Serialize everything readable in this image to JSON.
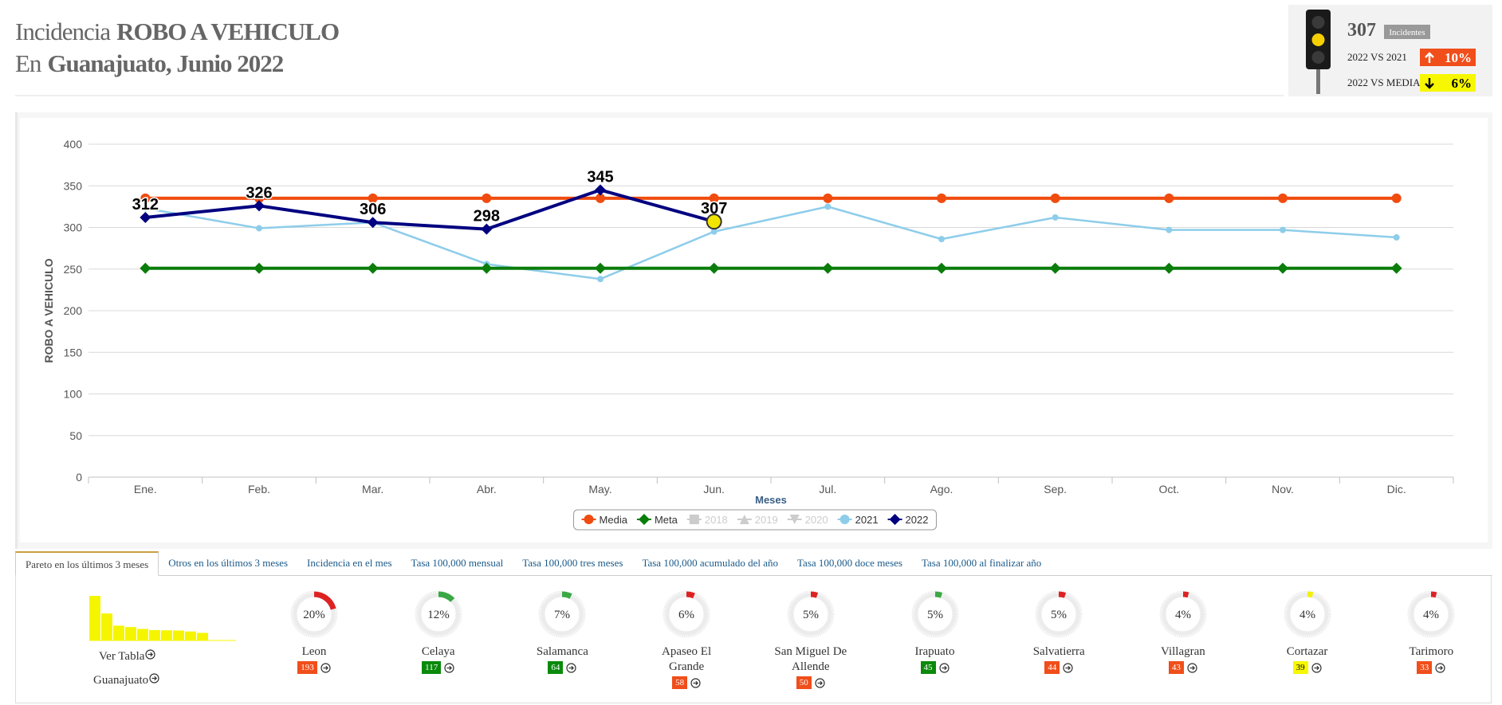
{
  "header": {
    "prefix1": "Incidencia",
    "crime": "ROBO A VEHICULO",
    "prefix2": "En",
    "place": "Guanajuato, Junio 2022"
  },
  "summary": {
    "count": "307",
    "count_label": "Incidentes",
    "compare1": {
      "label": "2022 VS 2021",
      "value": "10%",
      "color": "#f04e1a",
      "direction": "up"
    },
    "compare2": {
      "label": "2022 VS MEDIA",
      "value": "6%",
      "color": "#f7f700",
      "direction": "down"
    }
  },
  "chart_data": {
    "type": "line",
    "categories": [
      "Ene.",
      "Feb.",
      "Mar.",
      "Abr.",
      "May.",
      "Jun.",
      "Jul.",
      "Ago.",
      "Sep.",
      "Oct.",
      "Nov.",
      "Dic."
    ],
    "ylabel": "ROBO A VEHICULO",
    "xlabel": "Meses",
    "ylim": [
      0,
      400
    ],
    "yticks": [
      0,
      50,
      100,
      150,
      200,
      250,
      300,
      350,
      400
    ],
    "grid": true,
    "legend": "bottom",
    "series": [
      {
        "name": "Media",
        "color": "#f04c0f",
        "marker": "circle",
        "width": 4,
        "visible": true,
        "values": [
          335,
          335,
          335,
          335,
          335,
          335,
          335,
          335,
          335,
          335,
          335,
          335
        ]
      },
      {
        "name": "Meta",
        "color": "#0a7d0a",
        "marker": "diamond",
        "width": 4,
        "visible": true,
        "values": [
          251,
          251,
          251,
          251,
          251,
          251,
          251,
          251,
          251,
          251,
          251,
          251
        ]
      },
      {
        "name": "2018",
        "color": "#cccccc",
        "marker": "square",
        "width": 2,
        "visible": false,
        "values": [
          null,
          null,
          null,
          null,
          null,
          null,
          null,
          null,
          null,
          null,
          null,
          null
        ]
      },
      {
        "name": "2019",
        "color": "#cccccc",
        "marker": "triangle",
        "width": 2,
        "visible": false,
        "values": [
          null,
          null,
          null,
          null,
          null,
          null,
          null,
          null,
          null,
          null,
          null,
          null
        ]
      },
      {
        "name": "2020",
        "color": "#cccccc",
        "marker": "triangle-down",
        "width": 2,
        "visible": false,
        "values": [
          null,
          null,
          null,
          null,
          null,
          null,
          null,
          null,
          null,
          null,
          null,
          null
        ]
      },
      {
        "name": "2021",
        "color": "#8ecdea",
        "marker": "circle",
        "width": 2.5,
        "visible": true,
        "values": [
          323,
          299,
          306,
          256,
          238,
          295,
          325,
          286,
          312,
          297,
          297,
          288
        ]
      },
      {
        "name": "2022",
        "color": "#000080",
        "marker": "diamond",
        "width": 4,
        "visible": true,
        "data_labels": true,
        "highlight_index": 5,
        "values": [
          312,
          326,
          306,
          298,
          345,
          307,
          null,
          null,
          null,
          null,
          null,
          null
        ]
      }
    ]
  },
  "tabs": [
    "Pareto en los últimos 3 meses",
    "Otros en los últimos 3 meses",
    "Incidencia en el mes",
    "Tasa 100,000 mensual",
    "Tasa 100,000 tres meses",
    "Tasa 100,000 acumulado del año",
    "Tasa 100,000 doce meses",
    "Tasa 100,000 al finalizar año"
  ],
  "active_tab": 0,
  "links": [
    "Ver Tabla",
    "Guanajuato"
  ],
  "pareto_color": "#f5f500",
  "cards": [
    {
      "name": "Leon",
      "percent": 20,
      "percent_label": "20%",
      "count": 193,
      "gauge_color": "#dd2222",
      "badge_color": "#f04e1a",
      "badge_text_color": "#ffffff"
    },
    {
      "name": "Celaya",
      "percent": 12,
      "percent_label": "12%",
      "count": 117,
      "gauge_color": "#3aa845",
      "badge_color": "#0a8a0a",
      "badge_text_color": "#ffffff"
    },
    {
      "name": "Salamanca",
      "percent": 7,
      "percent_label": "7%",
      "count": 64,
      "gauge_color": "#3aa845",
      "badge_color": "#0a8a0a",
      "badge_text_color": "#ffffff"
    },
    {
      "name": "Apaseo El Grande",
      "percent": 6,
      "percent_label": "6%",
      "count": 58,
      "gauge_color": "#dd2222",
      "badge_color": "#f04e1a",
      "badge_text_color": "#ffffff"
    },
    {
      "name": "San Miguel De Allende",
      "percent": 5,
      "percent_label": "5%",
      "count": 50,
      "gauge_color": "#dd2222",
      "badge_color": "#f04e1a",
      "badge_text_color": "#ffffff"
    },
    {
      "name": "Irapuato",
      "percent": 5,
      "percent_label": "5%",
      "count": 45,
      "gauge_color": "#3aa845",
      "badge_color": "#0a8a0a",
      "badge_text_color": "#ffffff"
    },
    {
      "name": "Salvatierra",
      "percent": 5,
      "percent_label": "5%",
      "count": 44,
      "gauge_color": "#dd2222",
      "badge_color": "#f04e1a",
      "badge_text_color": "#ffffff"
    },
    {
      "name": "Villagran",
      "percent": 4,
      "percent_label": "4%",
      "count": 43,
      "gauge_color": "#dd2222",
      "badge_color": "#f04e1a",
      "badge_text_color": "#ffffff"
    },
    {
      "name": "Cortazar",
      "percent": 4,
      "percent_label": "4%",
      "count": 39,
      "gauge_color": "#f2f200",
      "badge_color": "#f7f700",
      "badge_text_color": "#000000"
    },
    {
      "name": "Tarimoro",
      "percent": 4,
      "percent_label": "4%",
      "count": 33,
      "gauge_color": "#dd2222",
      "badge_color": "#f04e1a",
      "badge_text_color": "#ffffff"
    }
  ]
}
